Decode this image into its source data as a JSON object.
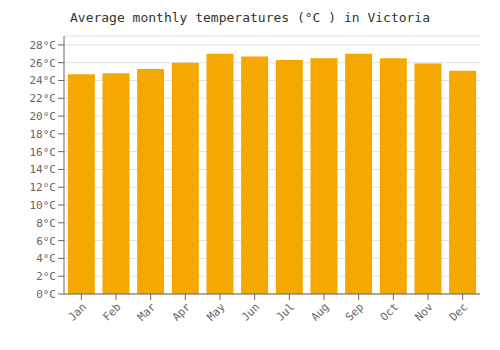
{
  "chart_data": {
    "type": "bar",
    "title": "Average monthly temperatures (°C ) in Victoria",
    "categories": [
      "Jan",
      "Feb",
      "Mar",
      "Apr",
      "May",
      "Jun",
      "Jul",
      "Aug",
      "Sep",
      "Oct",
      "Nov",
      "Dec"
    ],
    "values": [
      24.7,
      24.8,
      25.3,
      26.0,
      27.0,
      26.7,
      26.3,
      26.5,
      27.0,
      26.5,
      25.9,
      25.1
    ],
    "color": "#F5A800",
    "ylim": [
      0,
      29
    ],
    "yticks": [
      {
        "value": 0,
        "label": "0°C"
      },
      {
        "value": 2,
        "label": "2°C"
      },
      {
        "value": 4,
        "label": "4°C"
      },
      {
        "value": 6,
        "label": "6°C"
      },
      {
        "value": 8,
        "label": "8°C"
      },
      {
        "value": 10,
        "label": "10°C"
      },
      {
        "value": 12,
        "label": "12°C"
      },
      {
        "value": 14,
        "label": "14°C"
      },
      {
        "value": 16,
        "label": "16°C"
      },
      {
        "value": 18,
        "label": "18°C"
      },
      {
        "value": 20,
        "label": "20°C"
      },
      {
        "value": 22,
        "label": "22°C"
      },
      {
        "value": 24,
        "label": "24°C"
      },
      {
        "value": 26,
        "label": "26°C"
      },
      {
        "value": 28,
        "label": "28°C"
      }
    ],
    "grid": true
  }
}
